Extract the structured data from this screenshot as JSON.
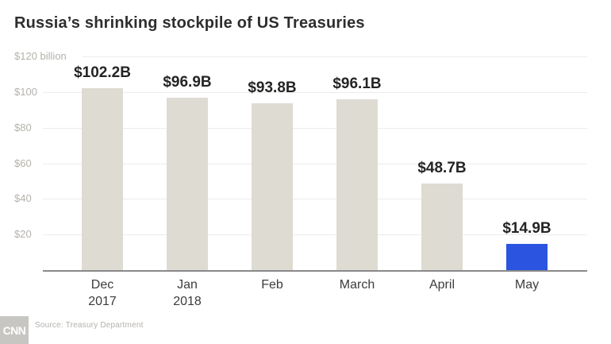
{
  "title": "Russia’s shrinking stockpile of US Treasuries",
  "chart_data": {
    "type": "bar",
    "categories": [
      {
        "month": "Dec",
        "year": "2017"
      },
      {
        "month": "Jan",
        "year": "2018"
      },
      {
        "month": "Feb",
        "year": ""
      },
      {
        "month": "March",
        "year": ""
      },
      {
        "month": "April",
        "year": ""
      },
      {
        "month": "May",
        "year": ""
      }
    ],
    "values": [
      102.2,
      96.9,
      93.8,
      96.1,
      48.7,
      14.9
    ],
    "value_labels": [
      "$102.2B",
      "$96.9B",
      "$93.8B",
      "$96.1B",
      "$48.7B",
      "$14.9B"
    ],
    "title": "Russia’s shrinking stockpile of US Treasuries",
    "xlabel": "",
    "ylabel": "billion",
    "ylim": [
      0,
      120
    ],
    "grid": true,
    "legend": "none",
    "y_axis": {
      "max": 120,
      "ticks": [
        {
          "value": 120,
          "label": "$120 billion"
        },
        {
          "value": 100,
          "label": "$100"
        },
        {
          "value": 80,
          "label": "$80"
        },
        {
          "value": 60,
          "label": "$60"
        },
        {
          "value": 40,
          "label": "$40"
        },
        {
          "value": 20,
          "label": "$20"
        }
      ]
    },
    "bar_color": "#dedbd3",
    "highlight_color": "#2b55e1",
    "highlight_index": 5
  },
  "footer": {
    "logo_text": "CNN",
    "source": "Source: Treasury Department"
  }
}
